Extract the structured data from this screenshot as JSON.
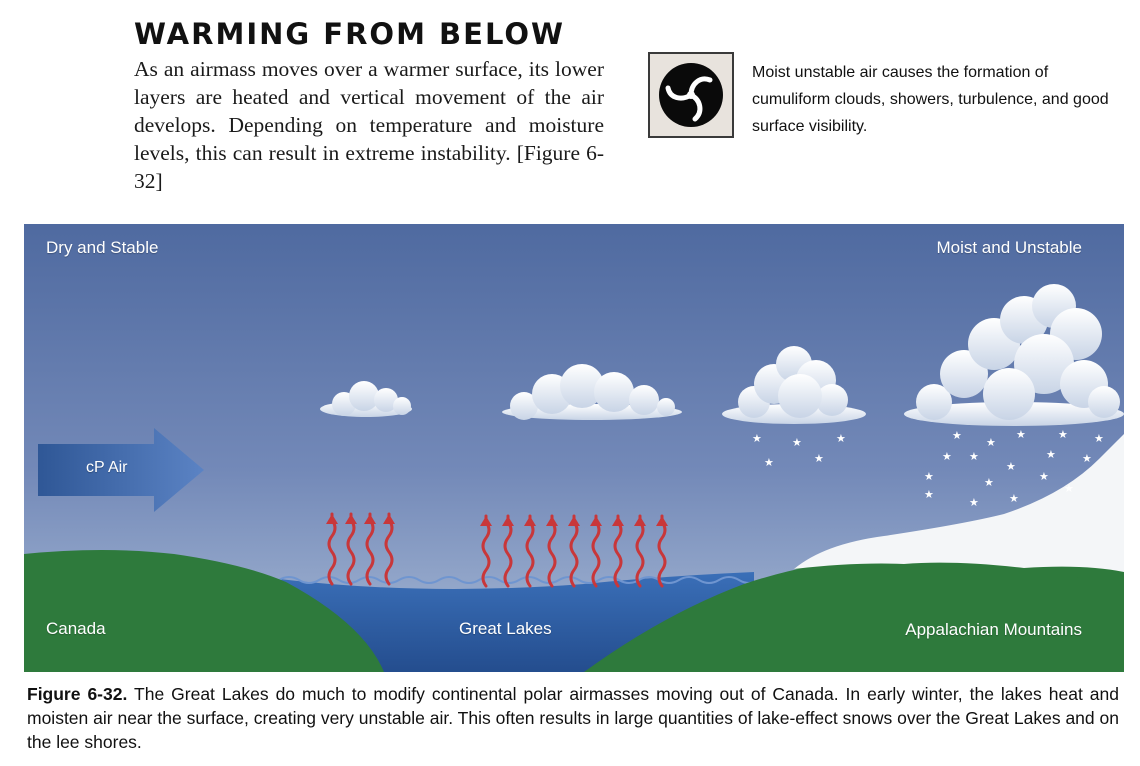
{
  "header": {
    "title": "WARMING FROM BELOW",
    "body": "As an airmass moves over a warmer surface, its lower layers are heated and vertical movement of the air develops. Depending on temperature and moisture levels, this can result in extreme instability. [Figure 6-32]"
  },
  "callout": {
    "icon": "triskelion-icon",
    "text": "Moist unstable air causes the formation of cumuliform clouds, showers, turbulence, and good surface visibility."
  },
  "figure": {
    "label_top_left": "Dry and Stable",
    "label_top_right": "Moist and Unstable",
    "label_arrow": "cP Air",
    "label_bottom_left": "Canada",
    "label_bottom_center": "Great Lakes",
    "label_bottom_right": "Appalachian Mountains",
    "colors": {
      "sky_top": "#4f6aa0",
      "sky_bottom": "#a3b6d2",
      "land": "#2e7a3c",
      "lake": "#2f5da3",
      "heat_arrows": "#c8373a",
      "arrow": "#3f66a8",
      "snow": "#ffffff"
    }
  },
  "caption": {
    "label": "Figure 6-32.",
    "text": "The Great Lakes do much to modify continental polar airmasses moving out of Canada. In early winter, the lakes heat and moisten air near the surface, creating very unstable air. This often results in large quantities of lake-effect snows over the Great Lakes and on the lee shores."
  }
}
